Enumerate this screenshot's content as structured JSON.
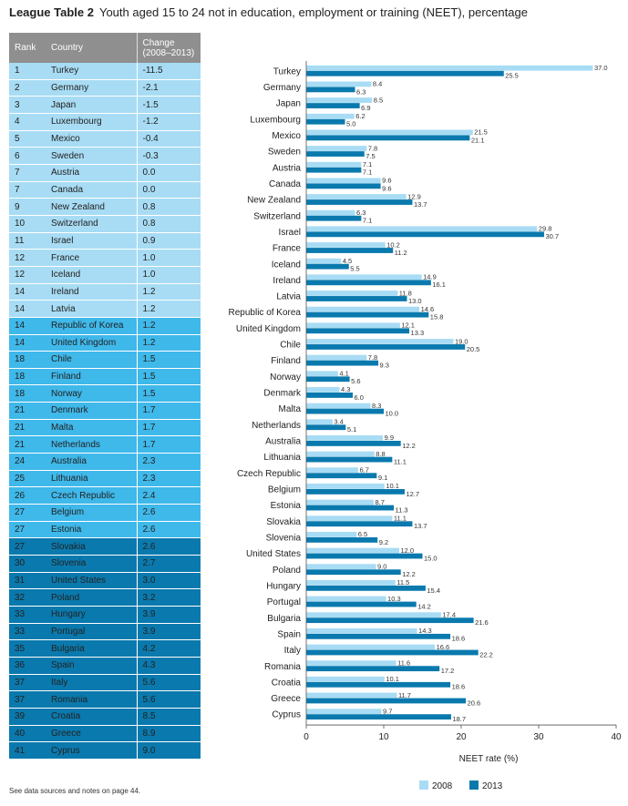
{
  "header": {
    "label": "League Table 2",
    "title": "Youth aged 15 to 24 not in education, employment or training (NEET), percentage"
  },
  "table": {
    "columns": [
      "Rank",
      "Country",
      "Change\n(2008–2013)"
    ],
    "rows": [
      {
        "rank": "1",
        "country": "Turkey",
        "change": "-11.5",
        "tier": 1
      },
      {
        "rank": "2",
        "country": "Germany",
        "change": "-2.1",
        "tier": 1
      },
      {
        "rank": "3",
        "country": "Japan",
        "change": "-1.5",
        "tier": 1
      },
      {
        "rank": "4",
        "country": "Luxembourg",
        "change": "-1.2",
        "tier": 1
      },
      {
        "rank": "5",
        "country": "Mexico",
        "change": "-0.4",
        "tier": 1
      },
      {
        "rank": "6",
        "country": "Sweden",
        "change": "-0.3",
        "tier": 1
      },
      {
        "rank": "7",
        "country": "Austria",
        "change": "0.0",
        "tier": 1
      },
      {
        "rank": "7",
        "country": "Canada",
        "change": "0.0",
        "tier": 1
      },
      {
        "rank": "9",
        "country": "New Zealand",
        "change": "0.8",
        "tier": 1
      },
      {
        "rank": "10",
        "country": "Switzerland",
        "change": "0.8",
        "tier": 1
      },
      {
        "rank": "11",
        "country": "Israel",
        "change": "0.9",
        "tier": 1
      },
      {
        "rank": "12",
        "country": "France",
        "change": "1.0",
        "tier": 1
      },
      {
        "rank": "12",
        "country": "Iceland",
        "change": "1.0",
        "tier": 1
      },
      {
        "rank": "14",
        "country": "Ireland",
        "change": "1.2",
        "tier": 1
      },
      {
        "rank": "14",
        "country": "Latvia",
        "change": "1.2",
        "tier": 1
      },
      {
        "rank": "14",
        "country": "Republic of Korea",
        "change": "1.2",
        "tier": 2
      },
      {
        "rank": "14",
        "country": "United Kingdom",
        "change": "1.2",
        "tier": 2
      },
      {
        "rank": "18",
        "country": "Chile",
        "change": "1.5",
        "tier": 2
      },
      {
        "rank": "18",
        "country": "Finland",
        "change": "1.5",
        "tier": 2
      },
      {
        "rank": "18",
        "country": "Norway",
        "change": "1.5",
        "tier": 2
      },
      {
        "rank": "21",
        "country": "Denmark",
        "change": "1.7",
        "tier": 2
      },
      {
        "rank": "21",
        "country": "Malta",
        "change": "1.7",
        "tier": 2
      },
      {
        "rank": "21",
        "country": "Netherlands",
        "change": "1.7",
        "tier": 2
      },
      {
        "rank": "24",
        "country": "Australia",
        "change": "2.3",
        "tier": 2
      },
      {
        "rank": "25",
        "country": "Lithuania",
        "change": "2.3",
        "tier": 2
      },
      {
        "rank": "26",
        "country": "Czech Republic",
        "change": "2.4",
        "tier": 2
      },
      {
        "rank": "27",
        "country": "Belgium",
        "change": "2.6",
        "tier": 2
      },
      {
        "rank": "27",
        "country": "Estonia",
        "change": "2.6",
        "tier": 2
      },
      {
        "rank": "27",
        "country": "Slovakia",
        "change": "2.6",
        "tier": 3
      },
      {
        "rank": "30",
        "country": "Slovenia",
        "change": "2.7",
        "tier": 3
      },
      {
        "rank": "31",
        "country": "United States",
        "change": "3.0",
        "tier": 3
      },
      {
        "rank": "32",
        "country": "Poland",
        "change": "3.2",
        "tier": 3
      },
      {
        "rank": "33",
        "country": "Hungary",
        "change": "3.9",
        "tier": 3
      },
      {
        "rank": "33",
        "country": "Portugal",
        "change": "3.9",
        "tier": 3
      },
      {
        "rank": "35",
        "country": "Bulgaria",
        "change": "4.2",
        "tier": 3
      },
      {
        "rank": "36",
        "country": "Spain",
        "change": "4.3",
        "tier": 3
      },
      {
        "rank": "37",
        "country": "Italy",
        "change": "5.6",
        "tier": 3
      },
      {
        "rank": "37",
        "country": "Romania",
        "change": "5.6",
        "tier": 3
      },
      {
        "rank": "39",
        "country": "Croatia",
        "change": "8.5",
        "tier": 3
      },
      {
        "rank": "40",
        "country": "Greece",
        "change": "8.9",
        "tier": 3
      },
      {
        "rank": "41",
        "country": "Cyprus",
        "change": "9.0",
        "tier": 3
      }
    ]
  },
  "colors": {
    "bar_2008": "#a8dcf4",
    "bar_2013": "#0a79ad",
    "tier1": "#a8dcf4",
    "tier2": "#3fb8ea",
    "tier3": "#0a79ad",
    "header_bg": "#8f8f8f"
  },
  "chart_data": {
    "type": "bar",
    "orientation": "horizontal",
    "categories": [
      "Turkey",
      "Germany",
      "Japan",
      "Luxembourg",
      "Mexico",
      "Sweden",
      "Austria",
      "Canada",
      "New Zealand",
      "Switzerland",
      "Israel",
      "France",
      "Iceland",
      "Ireland",
      "Latvia",
      "Republic of Korea",
      "United Kingdom",
      "Chile",
      "Finland",
      "Norway",
      "Denmark",
      "Malta",
      "Netherlands",
      "Australia",
      "Lithuania",
      "Czech Republic",
      "Belgium",
      "Estonia",
      "Slovakia",
      "Slovenia",
      "United States",
      "Poland",
      "Hungary",
      "Portugal",
      "Bulgaria",
      "Spain",
      "Italy",
      "Romania",
      "Croatia",
      "Greece",
      "Cyprus"
    ],
    "series": [
      {
        "name": "2008",
        "values": [
          37.0,
          8.4,
          8.5,
          6.2,
          21.5,
          7.8,
          7.1,
          9.6,
          12.9,
          6.3,
          29.8,
          10.2,
          4.5,
          14.9,
          11.8,
          14.6,
          12.1,
          19.0,
          7.8,
          4.1,
          4.3,
          8.3,
          3.4,
          9.9,
          8.8,
          6.7,
          10.1,
          8.7,
          11.1,
          6.5,
          12.0,
          9.0,
          11.5,
          10.3,
          17.4,
          14.3,
          16.6,
          11.6,
          10.1,
          11.7,
          9.7
        ]
      },
      {
        "name": "2013",
        "values": [
          25.5,
          6.3,
          6.9,
          5.0,
          21.1,
          7.5,
          7.1,
          9.6,
          13.7,
          7.1,
          30.7,
          11.2,
          5.5,
          16.1,
          13.0,
          15.8,
          13.3,
          20.5,
          9.3,
          5.6,
          6.0,
          10.0,
          5.1,
          12.2,
          11.1,
          9.1,
          12.7,
          11.3,
          13.7,
          9.2,
          15.0,
          12.2,
          15.4,
          14.2,
          21.6,
          18.6,
          22.2,
          17.2,
          18.6,
          20.6,
          18.7
        ]
      }
    ],
    "xlabel": "NEET rate (%)",
    "xlim": [
      0,
      40
    ],
    "xticks": [
      0,
      10,
      20,
      30,
      40
    ],
    "legend_position": "bottom-right",
    "grid": false
  },
  "footnote": "See data sources and notes on page 44."
}
